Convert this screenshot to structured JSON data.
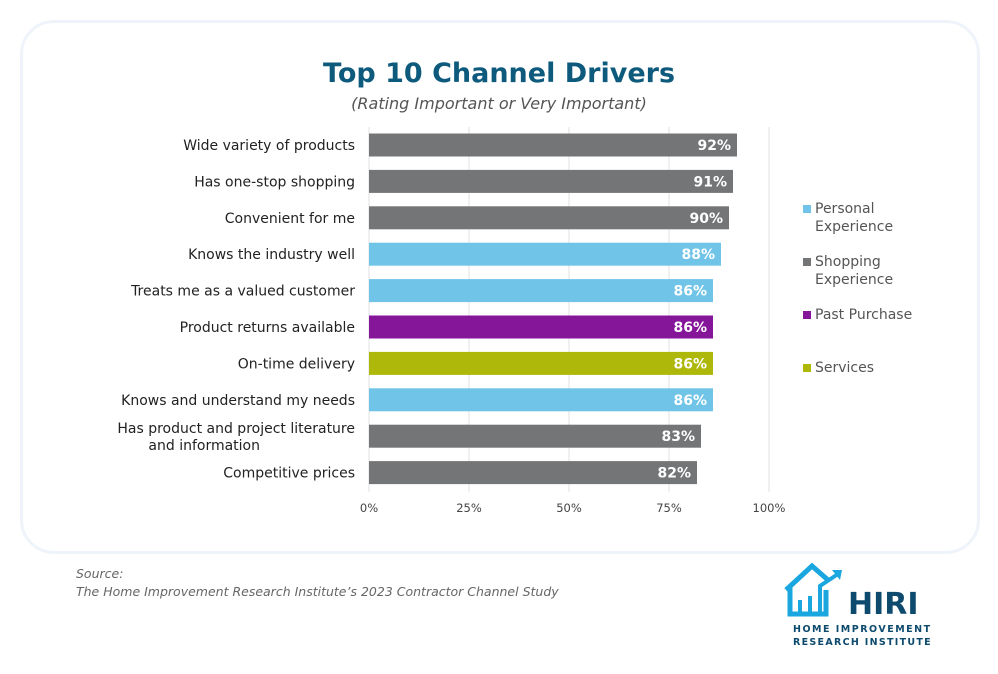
{
  "chart_data": {
    "type": "bar",
    "orientation": "horizontal",
    "title": "Top 10 Channel Drivers",
    "subtitle": "(Rating Important or Very Important)",
    "categories": [
      "Wide variety of products",
      "Has one-stop shopping",
      "Convenient for me",
      "Knows the industry well",
      "Treats me as a valued customer",
      "Product returns available",
      "On-time delivery",
      "Knows and understand my needs",
      "Has product and project literature and information",
      "Competitive prices"
    ],
    "values": [
      92,
      91,
      90,
      88,
      86,
      86,
      86,
      86,
      83,
      82
    ],
    "groups": [
      "Shopping Experience",
      "Shopping Experience",
      "Shopping Experience",
      "Personal Experience",
      "Personal Experience",
      "Past Purchase",
      "Services",
      "Personal Experience",
      "Shopping Experience",
      "Shopping Experience"
    ],
    "data_labels": [
      "92%",
      "91%",
      "90%",
      "88%",
      "86%",
      "86%",
      "86%",
      "86%",
      "83%",
      "82%"
    ],
    "xlim": [
      0,
      100
    ],
    "xticks": [
      0,
      25,
      50,
      75,
      100
    ],
    "xtick_labels": [
      "0%",
      "25%",
      "50%",
      "75%",
      "100%"
    ],
    "grid": true,
    "legend_position": "right",
    "legend": [
      {
        "name": "Personal Experience",
        "color": "#70c4e8"
      },
      {
        "name": "Shopping Experience",
        "color": "#737577"
      },
      {
        "name": "Past Purchase",
        "color": "#851699"
      },
      {
        "name": "Services",
        "color": "#aeb80a"
      }
    ]
  },
  "source": {
    "label": "Source:",
    "text": "The Home Improvement Research Institute’s 2023 Contractor Channel Study"
  },
  "logo": {
    "name": "HIRI",
    "line1": "HOME IMPROVEMENT",
    "line2": "RESEARCH INSTITUTE"
  }
}
